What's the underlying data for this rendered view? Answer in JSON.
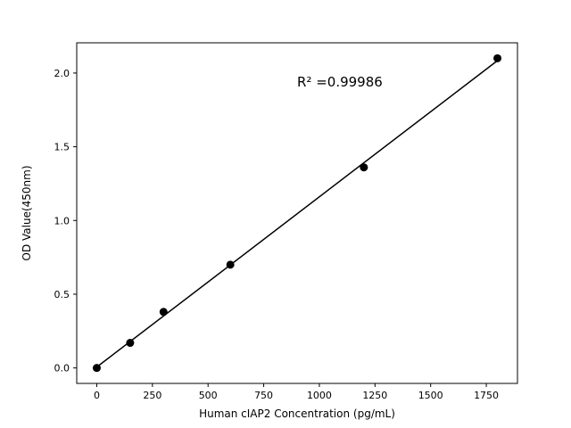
{
  "figure": {
    "background": "#ffffff"
  },
  "chart_data": {
    "type": "scatter",
    "title": "",
    "xlabel": "Human cIAP2 Concentration (pg/mL)",
    "ylabel": "OD Value(450nm)",
    "x": [
      0,
      150,
      300,
      600,
      1200,
      1800
    ],
    "y": [
      0.0,
      0.17,
      0.38,
      0.7,
      1.36,
      2.1
    ],
    "fit_line": {
      "x": [
        0,
        1800
      ],
      "y": [
        0.006,
        2.084
      ]
    },
    "annotation": {
      "text": "R² =0.99986",
      "x": 900,
      "y": 1.91
    },
    "xlim": [
      -90,
      1890
    ],
    "ylim": [
      -0.105,
      2.205
    ],
    "xticks": [
      0,
      250,
      500,
      750,
      1000,
      1250,
      1500,
      1750
    ],
    "xtick_labels": [
      "0",
      "250",
      "500",
      "750",
      "1000",
      "1250",
      "1500",
      "1750"
    ],
    "yticks": [
      0.0,
      0.5,
      1.0,
      1.5,
      2.0
    ],
    "ytick_labels": [
      "0.0",
      "0.5",
      "1.0",
      "1.5",
      "2.0"
    ],
    "marker_color": "#000000",
    "line_color": "#000000",
    "axis_color": "#000000",
    "grid": false,
    "legend_position": "none"
  }
}
